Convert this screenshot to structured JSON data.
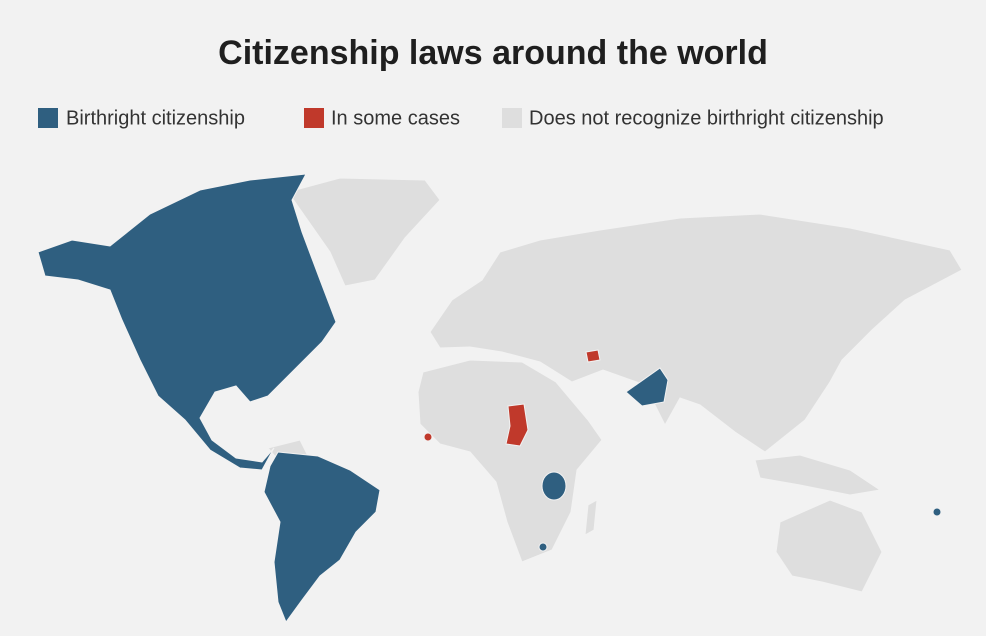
{
  "title": "Citizenship laws around the world",
  "legend": [
    {
      "label": "Birthright citizenship",
      "color": "#2f5f80"
    },
    {
      "label": "In some cases",
      "color": "#c0392b"
    },
    {
      "label": "Does not recognize birthright citizenship",
      "color": "#dedede"
    }
  ]
}
